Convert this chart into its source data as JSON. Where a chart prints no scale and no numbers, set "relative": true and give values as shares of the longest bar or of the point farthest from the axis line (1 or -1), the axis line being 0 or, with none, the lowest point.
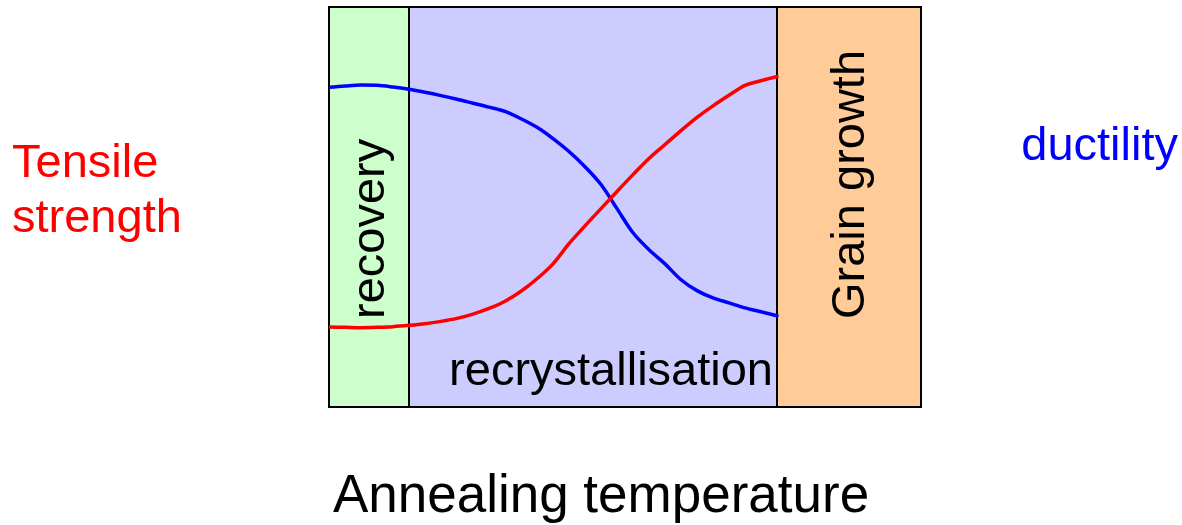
{
  "chart_data": {
    "type": "line",
    "relative": true,
    "xlabel": "Annealing temperature",
    "annotations": [
      "recovery",
      "recrystallisation",
      "Grain growth"
    ],
    "categories": [
      null,
      null,
      null,
      null,
      null,
      null,
      null,
      null,
      null,
      null,
      null,
      null,
      null,
      null,
      null,
      null,
      null,
      null,
      null,
      null,
      null,
      null,
      null,
      null,
      null,
      null,
      null,
      null,
      null,
      null,
      null,
      null,
      null,
      null,
      null,
      null,
      null,
      null
    ],
    "series": [
      {
        "name": "Tensile strength",
        "color": "#ff0000",
        "values": [
          0.242,
          0.241,
          0.24,
          0.241,
          0.243,
          0.247,
          0.252,
          0.259,
          0.268,
          0.281,
          0.298,
          0.32,
          0.35,
          0.388,
          0.433,
          0.494,
          0.548,
          0.6,
          0.652,
          0.703,
          0.752,
          0.794,
          0.836,
          0.876,
          0.911,
          0.943,
          0.973,
          0.987,
          1,
          null,
          null,
          null,
          null,
          null,
          null,
          null,
          null,
          null
        ]
      },
      {
        "name": "ductility",
        "color": "#0000ff",
        "values": [
          0.967,
          0.971,
          0.974,
          0.973,
          0.968,
          0.961,
          0.952,
          0.942,
          0.931,
          0.919,
          0.907,
          0.894,
          0.872,
          0.846,
          0.812,
          0.773,
          0.727,
          0.673,
          0.6,
          0.527,
          0.476,
          0.433,
          0.385,
          0.352,
          0.33,
          0.315,
          0.3,
          0.288,
          0.276,
          null,
          null,
          null,
          null,
          null,
          null,
          null,
          null,
          null
        ]
      }
    ]
  }
}
